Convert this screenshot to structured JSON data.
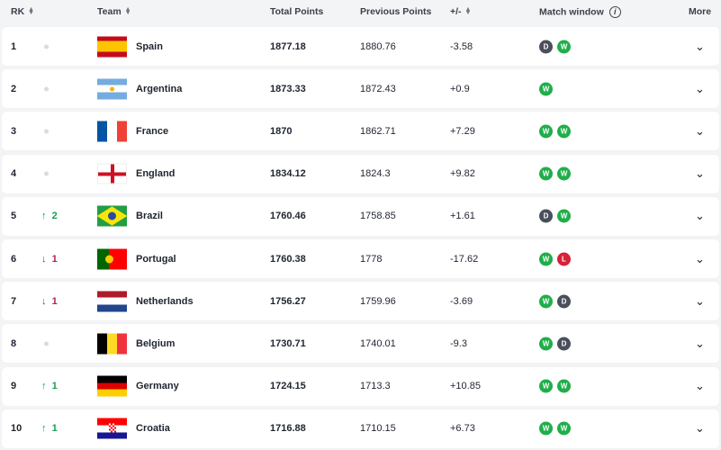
{
  "headers": {
    "rk": "RK",
    "team": "Team",
    "total": "Total Points",
    "previous": "Previous Points",
    "diff": "+/-",
    "match_window": "Match window",
    "more": "More"
  },
  "colors": {
    "win": "#1fae4a",
    "draw": "#4a4f5c",
    "loss": "#d6213a",
    "up": "#1a9a55",
    "down": "#b0244a"
  },
  "rows": [
    {
      "rk": "1",
      "move": "",
      "dir": "none",
      "team": "Spain",
      "flag": "spain",
      "total": "1877.18",
      "previous": "1880.76",
      "diff": "-3.58",
      "results": [
        "D",
        "W"
      ]
    },
    {
      "rk": "2",
      "move": "",
      "dir": "none",
      "team": "Argentina",
      "flag": "argentina",
      "total": "1873.33",
      "previous": "1872.43",
      "diff": "+0.9",
      "results": [
        "W"
      ]
    },
    {
      "rk": "3",
      "move": "",
      "dir": "none",
      "team": "France",
      "flag": "france",
      "total": "1870",
      "previous": "1862.71",
      "diff": "+7.29",
      "results": [
        "W",
        "W"
      ]
    },
    {
      "rk": "4",
      "move": "",
      "dir": "none",
      "team": "England",
      "flag": "england",
      "total": "1834.12",
      "previous": "1824.3",
      "diff": "+9.82",
      "results": [
        "W",
        "W"
      ]
    },
    {
      "rk": "5",
      "move": "2",
      "dir": "up",
      "team": "Brazil",
      "flag": "brazil",
      "total": "1760.46",
      "previous": "1758.85",
      "diff": "+1.61",
      "results": [
        "D",
        "W"
      ]
    },
    {
      "rk": "6",
      "move": "1",
      "dir": "down",
      "team": "Portugal",
      "flag": "portugal",
      "total": "1760.38",
      "previous": "1778",
      "diff": "-17.62",
      "results": [
        "W",
        "L"
      ]
    },
    {
      "rk": "7",
      "move": "1",
      "dir": "down",
      "team": "Netherlands",
      "flag": "netherlands",
      "total": "1756.27",
      "previous": "1759.96",
      "diff": "-3.69",
      "results": [
        "W",
        "D"
      ]
    },
    {
      "rk": "8",
      "move": "",
      "dir": "none",
      "team": "Belgium",
      "flag": "belgium",
      "total": "1730.71",
      "previous": "1740.01",
      "diff": "-9.3",
      "results": [
        "W",
        "D"
      ]
    },
    {
      "rk": "9",
      "move": "1",
      "dir": "up",
      "team": "Germany",
      "flag": "germany",
      "total": "1724.15",
      "previous": "1713.3",
      "diff": "+10.85",
      "results": [
        "W",
        "W"
      ]
    },
    {
      "rk": "10",
      "move": "1",
      "dir": "up",
      "team": "Croatia",
      "flag": "croatia",
      "total": "1716.88",
      "previous": "1710.15",
      "diff": "+6.73",
      "results": [
        "W",
        "W"
      ]
    }
  ]
}
